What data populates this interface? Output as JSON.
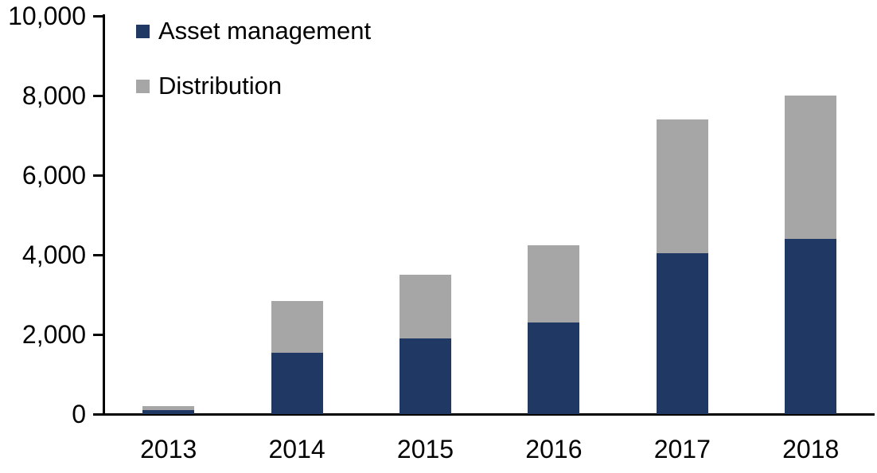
{
  "chart_data": {
    "type": "bar",
    "stacked": true,
    "title": "",
    "xlabel": "",
    "ylabel": "",
    "categories": [
      "2013",
      "2014",
      "2015",
      "2016",
      "2017",
      "2018"
    ],
    "series": [
      {
        "name": "Asset management",
        "color": "#1F3864",
        "values": [
          100,
          1550,
          1900,
          2300,
          4050,
          4400
        ]
      },
      {
        "name": "Distribution",
        "color": "#A6A6A6",
        "values": [
          110,
          1300,
          1600,
          1950,
          3350,
          3600
        ]
      }
    ],
    "ylim": [
      0,
      10000
    ],
    "yticks": [
      0,
      2000,
      4000,
      6000,
      8000,
      10000
    ],
    "ytick_labels": [
      "0",
      "2,000",
      "4,000",
      "6,000",
      "8,000",
      "10,000"
    ],
    "legend_position": "top-left",
    "grid": false,
    "axis_color": "#000000",
    "text_color": "#000000",
    "background_color": "#FFFFFF"
  }
}
